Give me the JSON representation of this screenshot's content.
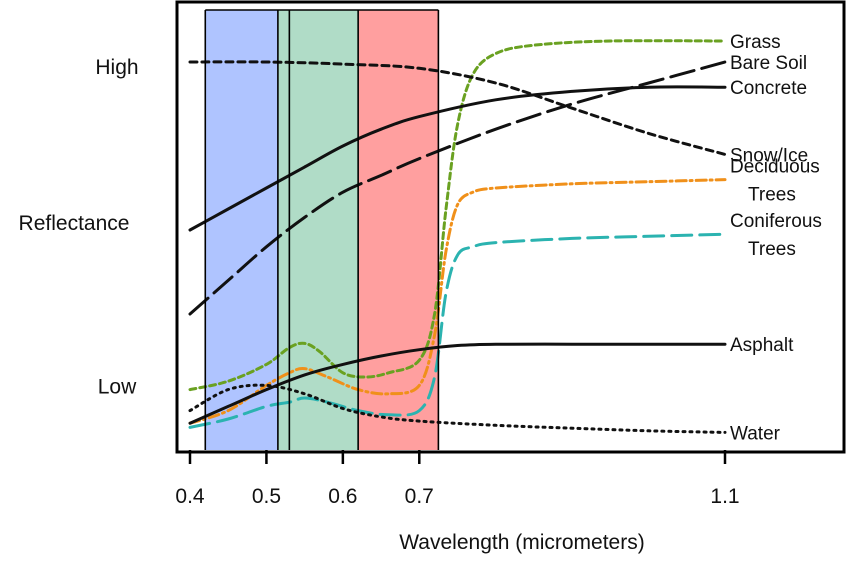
{
  "chart_data": {
    "type": "line",
    "title": "",
    "xlabel": "Wavelength (micrometers)",
    "ylabel": "Reflectance",
    "xlim": [
      0.4,
      1.25
    ],
    "ylim": [
      0,
      1
    ],
    "x_ticks": [
      0.4,
      0.5,
      0.6,
      0.7,
      1.1
    ],
    "x_tick_labels": [
      "0.4",
      "0.5",
      "0.6",
      "0.7",
      "1.1"
    ],
    "y_labels": [
      {
        "label": "High",
        "value": 0.89
      },
      {
        "label": "Low",
        "value": 0.13
      }
    ],
    "grid": false,
    "legend": "labels at right end of each line",
    "bands": [
      {
        "name": "blue",
        "x": [
          0.42,
          0.515
        ],
        "color": "#7a9cff",
        "opacity": 0.6
      },
      {
        "name": "green",
        "x": [
          0.515,
          0.62
        ],
        "color": "#6fbf99",
        "opacity": 0.55
      },
      {
        "name": "red",
        "x": [
          0.62,
          0.725
        ],
        "color": "#ff6b6b",
        "opacity": 0.65
      }
    ],
    "band_edges": [
      0.42,
      0.515,
      0.53,
      0.62,
      0.725
    ],
    "series": [
      {
        "name": "Grass",
        "label_lines": [
          "Grass"
        ],
        "color": "#6aa121",
        "dash": "6,4",
        "width": 3,
        "points": [
          [
            0.4,
            0.12
          ],
          [
            0.45,
            0.14
          ],
          [
            0.5,
            0.18
          ],
          [
            0.53,
            0.22
          ],
          [
            0.55,
            0.23
          ],
          [
            0.57,
            0.21
          ],
          [
            0.6,
            0.16
          ],
          [
            0.63,
            0.15
          ],
          [
            0.66,
            0.16
          ],
          [
            0.7,
            0.19
          ],
          [
            0.72,
            0.3
          ],
          [
            0.735,
            0.55
          ],
          [
            0.75,
            0.75
          ],
          [
            0.77,
            0.87
          ],
          [
            0.8,
            0.92
          ],
          [
            0.85,
            0.94
          ],
          [
            0.95,
            0.95
          ],
          [
            1.1,
            0.95
          ]
        ]
      },
      {
        "name": "Bare Soil",
        "label_lines": [
          "Bare Soil"
        ],
        "color": "#111111",
        "dash": "24,8",
        "width": 3,
        "points": [
          [
            0.4,
            0.3
          ],
          [
            0.45,
            0.38
          ],
          [
            0.5,
            0.46
          ],
          [
            0.55,
            0.53
          ],
          [
            0.6,
            0.59
          ],
          [
            0.65,
            0.63
          ],
          [
            0.7,
            0.67
          ],
          [
            0.8,
            0.74
          ],
          [
            0.9,
            0.8
          ],
          [
            1.0,
            0.85
          ],
          [
            1.1,
            0.9
          ]
        ]
      },
      {
        "name": "Concrete",
        "label_lines": [
          "Concrete"
        ],
        "color": "#111111",
        "dash": "",
        "width": 3,
        "points": [
          [
            0.4,
            0.5
          ],
          [
            0.45,
            0.55
          ],
          [
            0.5,
            0.6
          ],
          [
            0.55,
            0.65
          ],
          [
            0.6,
            0.7
          ],
          [
            0.65,
            0.74
          ],
          [
            0.7,
            0.77
          ],
          [
            0.8,
            0.81
          ],
          [
            0.9,
            0.83
          ],
          [
            1.0,
            0.84
          ],
          [
            1.1,
            0.84
          ]
        ]
      },
      {
        "name": "Snow/Ice",
        "label_lines": [
          "Snow/Ice"
        ],
        "color": "#111111",
        "dash": "7,5",
        "width": 3,
        "points": [
          [
            0.4,
            0.9
          ],
          [
            0.5,
            0.9
          ],
          [
            0.6,
            0.895
          ],
          [
            0.7,
            0.885
          ],
          [
            0.8,
            0.85
          ],
          [
            0.9,
            0.79
          ],
          [
            1.0,
            0.73
          ],
          [
            1.1,
            0.68
          ]
        ]
      },
      {
        "name": "Deciduous Trees",
        "label_lines": [
          "Deciduous",
          "Trees"
        ],
        "color": "#f0901a",
        "dash": "10,4,2,4",
        "width": 3,
        "points": [
          [
            0.4,
            0.04
          ],
          [
            0.45,
            0.07
          ],
          [
            0.5,
            0.13
          ],
          [
            0.53,
            0.16
          ],
          [
            0.55,
            0.17
          ],
          [
            0.58,
            0.15
          ],
          [
            0.62,
            0.12
          ],
          [
            0.66,
            0.11
          ],
          [
            0.7,
            0.13
          ],
          [
            0.72,
            0.25
          ],
          [
            0.735,
            0.45
          ],
          [
            0.75,
            0.56
          ],
          [
            0.77,
            0.59
          ],
          [
            0.8,
            0.6
          ],
          [
            0.9,
            0.61
          ],
          [
            1.0,
            0.615
          ],
          [
            1.1,
            0.62
          ]
        ]
      },
      {
        "name": "Coniferous Trees",
        "label_lines": [
          "Coniferous",
          "Trees"
        ],
        "color": "#2bb3b0",
        "dash": "20,8",
        "width": 3,
        "points": [
          [
            0.4,
            0.03
          ],
          [
            0.45,
            0.05
          ],
          [
            0.5,
            0.08
          ],
          [
            0.53,
            0.09
          ],
          [
            0.55,
            0.1
          ],
          [
            0.58,
            0.09
          ],
          [
            0.62,
            0.07
          ],
          [
            0.66,
            0.06
          ],
          [
            0.7,
            0.07
          ],
          [
            0.72,
            0.15
          ],
          [
            0.735,
            0.35
          ],
          [
            0.75,
            0.44
          ],
          [
            0.77,
            0.46
          ],
          [
            0.8,
            0.47
          ],
          [
            0.9,
            0.48
          ],
          [
            1.0,
            0.485
          ],
          [
            1.1,
            0.49
          ]
        ]
      },
      {
        "name": "Asphalt",
        "label_lines": [
          "Asphalt"
        ],
        "color": "#111111",
        "dash": "",
        "width": 3,
        "points": [
          [
            0.4,
            0.04
          ],
          [
            0.45,
            0.08
          ],
          [
            0.5,
            0.12
          ],
          [
            0.55,
            0.155
          ],
          [
            0.6,
            0.18
          ],
          [
            0.65,
            0.2
          ],
          [
            0.7,
            0.215
          ],
          [
            0.75,
            0.225
          ],
          [
            0.8,
            0.228
          ],
          [
            0.9,
            0.228
          ],
          [
            1.0,
            0.228
          ],
          [
            1.1,
            0.228
          ]
        ]
      },
      {
        "name": "Water",
        "label_lines": [
          "Water"
        ],
        "color": "#111111",
        "dash": "2,5",
        "width": 3,
        "points": [
          [
            0.4,
            0.07
          ],
          [
            0.45,
            0.12
          ],
          [
            0.5,
            0.13
          ],
          [
            0.55,
            0.11
          ],
          [
            0.6,
            0.075
          ],
          [
            0.65,
            0.055
          ],
          [
            0.7,
            0.045
          ],
          [
            0.8,
            0.035
          ],
          [
            0.9,
            0.028
          ],
          [
            1.0,
            0.022
          ],
          [
            1.1,
            0.018
          ]
        ]
      }
    ]
  }
}
